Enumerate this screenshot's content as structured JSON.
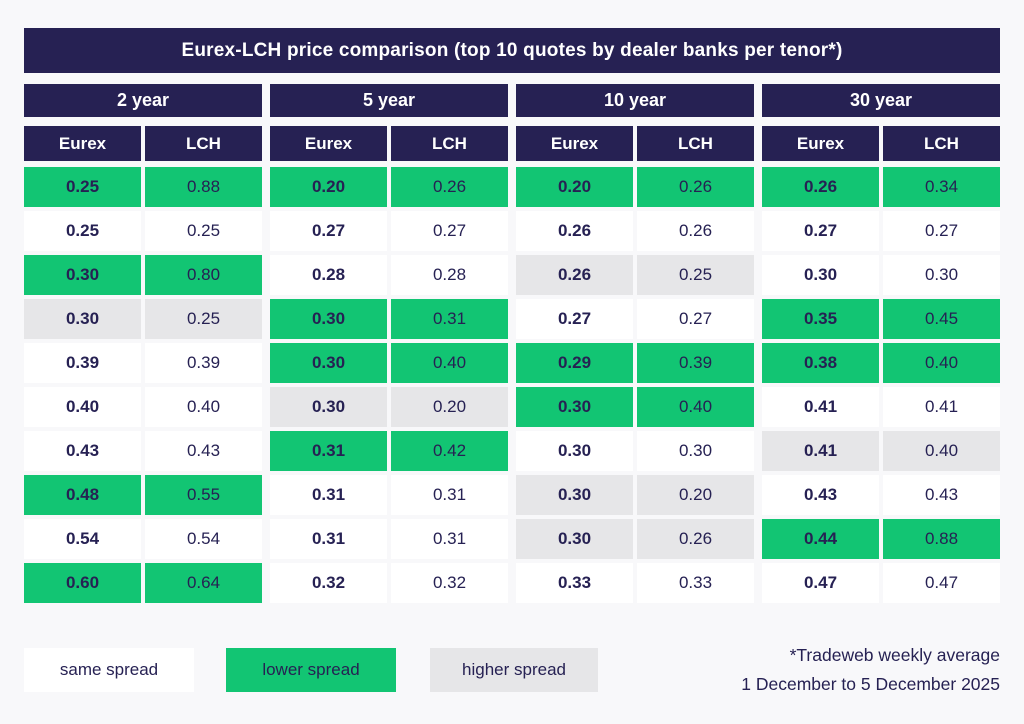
{
  "title": "Eurex-LCH price comparison (top 10 quotes by dealer banks per tenor*)",
  "colors": {
    "navy": "#262153",
    "green": "#12c573",
    "gray": "#e6e6e8",
    "white": "#ffffff",
    "page_bg": "#f8f8fa",
    "text": "#262153"
  },
  "chart_data": {
    "type": "table",
    "title": "Eurex-LCH price comparison (top 10 quotes by dealer banks per tenor*)",
    "subcolumns": [
      "Eurex",
      "LCH"
    ],
    "spread_key": {
      "same": "same spread",
      "lower": "lower spread",
      "higher": "higher spread"
    },
    "series": [
      {
        "tenor": "2 year",
        "rows": [
          {
            "eurex": 0.25,
            "lch": 0.88,
            "spread": "lower"
          },
          {
            "eurex": 0.25,
            "lch": 0.25,
            "spread": "same"
          },
          {
            "eurex": 0.3,
            "lch": 0.8,
            "spread": "lower"
          },
          {
            "eurex": 0.3,
            "lch": 0.25,
            "spread": "higher"
          },
          {
            "eurex": 0.39,
            "lch": 0.39,
            "spread": "same"
          },
          {
            "eurex": 0.4,
            "lch": 0.4,
            "spread": "same"
          },
          {
            "eurex": 0.43,
            "lch": 0.43,
            "spread": "same"
          },
          {
            "eurex": 0.48,
            "lch": 0.55,
            "spread": "lower"
          },
          {
            "eurex": 0.54,
            "lch": 0.54,
            "spread": "same"
          },
          {
            "eurex": 0.6,
            "lch": 0.64,
            "spread": "lower"
          }
        ]
      },
      {
        "tenor": "5 year",
        "rows": [
          {
            "eurex": 0.2,
            "lch": 0.26,
            "spread": "lower"
          },
          {
            "eurex": 0.27,
            "lch": 0.27,
            "spread": "same"
          },
          {
            "eurex": 0.28,
            "lch": 0.28,
            "spread": "same"
          },
          {
            "eurex": 0.3,
            "lch": 0.31,
            "spread": "lower"
          },
          {
            "eurex": 0.3,
            "lch": 0.4,
            "spread": "lower"
          },
          {
            "eurex": 0.3,
            "lch": 0.2,
            "spread": "higher"
          },
          {
            "eurex": 0.31,
            "lch": 0.42,
            "spread": "lower"
          },
          {
            "eurex": 0.31,
            "lch": 0.31,
            "spread": "same"
          },
          {
            "eurex": 0.31,
            "lch": 0.31,
            "spread": "same"
          },
          {
            "eurex": 0.32,
            "lch": 0.32,
            "spread": "same"
          }
        ]
      },
      {
        "tenor": "10 year",
        "rows": [
          {
            "eurex": 0.2,
            "lch": 0.26,
            "spread": "lower"
          },
          {
            "eurex": 0.26,
            "lch": 0.26,
            "spread": "same"
          },
          {
            "eurex": 0.26,
            "lch": 0.25,
            "spread": "higher"
          },
          {
            "eurex": 0.27,
            "lch": 0.27,
            "spread": "same"
          },
          {
            "eurex": 0.29,
            "lch": 0.39,
            "spread": "lower"
          },
          {
            "eurex": 0.3,
            "lch": 0.4,
            "spread": "lower"
          },
          {
            "eurex": 0.3,
            "lch": 0.3,
            "spread": "same"
          },
          {
            "eurex": 0.3,
            "lch": 0.2,
            "spread": "higher"
          },
          {
            "eurex": 0.3,
            "lch": 0.26,
            "spread": "higher"
          },
          {
            "eurex": 0.33,
            "lch": 0.33,
            "spread": "same"
          }
        ]
      },
      {
        "tenor": "30 year",
        "rows": [
          {
            "eurex": 0.26,
            "lch": 0.34,
            "spread": "lower"
          },
          {
            "eurex": 0.27,
            "lch": 0.27,
            "spread": "same"
          },
          {
            "eurex": 0.3,
            "lch": 0.3,
            "spread": "same"
          },
          {
            "eurex": 0.35,
            "lch": 0.45,
            "spread": "lower"
          },
          {
            "eurex": 0.38,
            "lch": 0.4,
            "spread": "lower"
          },
          {
            "eurex": 0.41,
            "lch": 0.41,
            "spread": "same"
          },
          {
            "eurex": 0.41,
            "lch": 0.4,
            "spread": "higher"
          },
          {
            "eurex": 0.43,
            "lch": 0.43,
            "spread": "same"
          },
          {
            "eurex": 0.44,
            "lch": 0.88,
            "spread": "lower"
          },
          {
            "eurex": 0.47,
            "lch": 0.47,
            "spread": "same"
          }
        ]
      }
    ]
  },
  "legend": {
    "same_label": "same spread",
    "lower_label": "lower spread",
    "higher_label": "higher spread"
  },
  "footnote": {
    "line1": "*Tradeweb weekly average",
    "line2": "1 December to 5 December 2025"
  }
}
